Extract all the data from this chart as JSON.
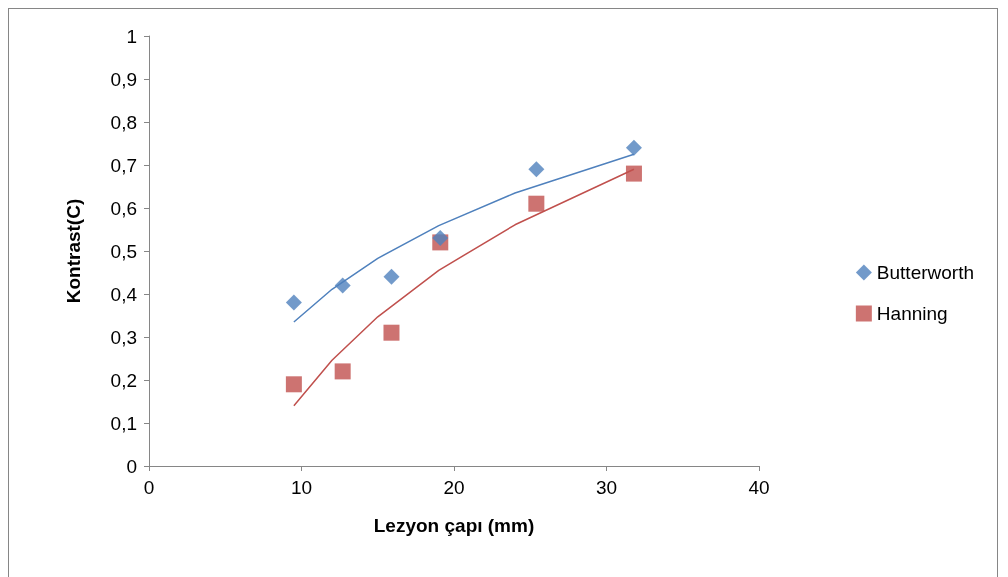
{
  "chart_data": {
    "type": "scatter",
    "xlabel": "Lezyon çapı (mm)",
    "ylabel": "Kontrast(C)",
    "xlim": [
      0,
      40
    ],
    "xticks": [
      0,
      10,
      20,
      30,
      40
    ],
    "ylim": [
      0,
      1
    ],
    "yticks": [
      {
        "value": 0,
        "label": "0"
      },
      {
        "value": 0.1,
        "label": "0,1"
      },
      {
        "value": 0.2,
        "label": "0,2"
      },
      {
        "value": 0.3,
        "label": "0,3"
      },
      {
        "value": 0.4,
        "label": "0,4"
      },
      {
        "value": 0.5,
        "label": "0,5"
      },
      {
        "value": 0.6,
        "label": "0,6"
      },
      {
        "value": 0.7,
        "label": "0,7"
      },
      {
        "value": 0.8,
        "label": "0,8"
      },
      {
        "value": 0.9,
        "label": "0,9"
      },
      {
        "value": 1,
        "label": "1"
      }
    ],
    "grid": false,
    "legend": "right",
    "x": [
      9.5,
      12.7,
      15.9,
      19.1,
      25.4,
      31.8
    ],
    "series": [
      {
        "name": "Butterworth",
        "color": "#4f81bd",
        "marker": "diamond",
        "values": [
          0.38,
          0.42,
          0.44,
          0.53,
          0.69,
          0.74
        ]
      },
      {
        "name": "Hanning",
        "color": "#c0504d",
        "marker": "square",
        "values": [
          0.19,
          0.22,
          0.31,
          0.52,
          0.61,
          0.68
        ]
      },
      {
        "type": "line",
        "color": "#4f81bd",
        "marker": "none",
        "x": [
          9.5,
          12,
          15,
          19,
          24,
          31.8
        ],
        "values": [
          0.335,
          0.411,
          0.483,
          0.559,
          0.635,
          0.725
        ]
      },
      {
        "type": "line",
        "color": "#c0504d",
        "marker": "none",
        "x": [
          9.5,
          12,
          15,
          19,
          24,
          31.8
        ],
        "values": [
          0.14,
          0.246,
          0.347,
          0.455,
          0.561,
          0.69
        ]
      }
    ]
  }
}
